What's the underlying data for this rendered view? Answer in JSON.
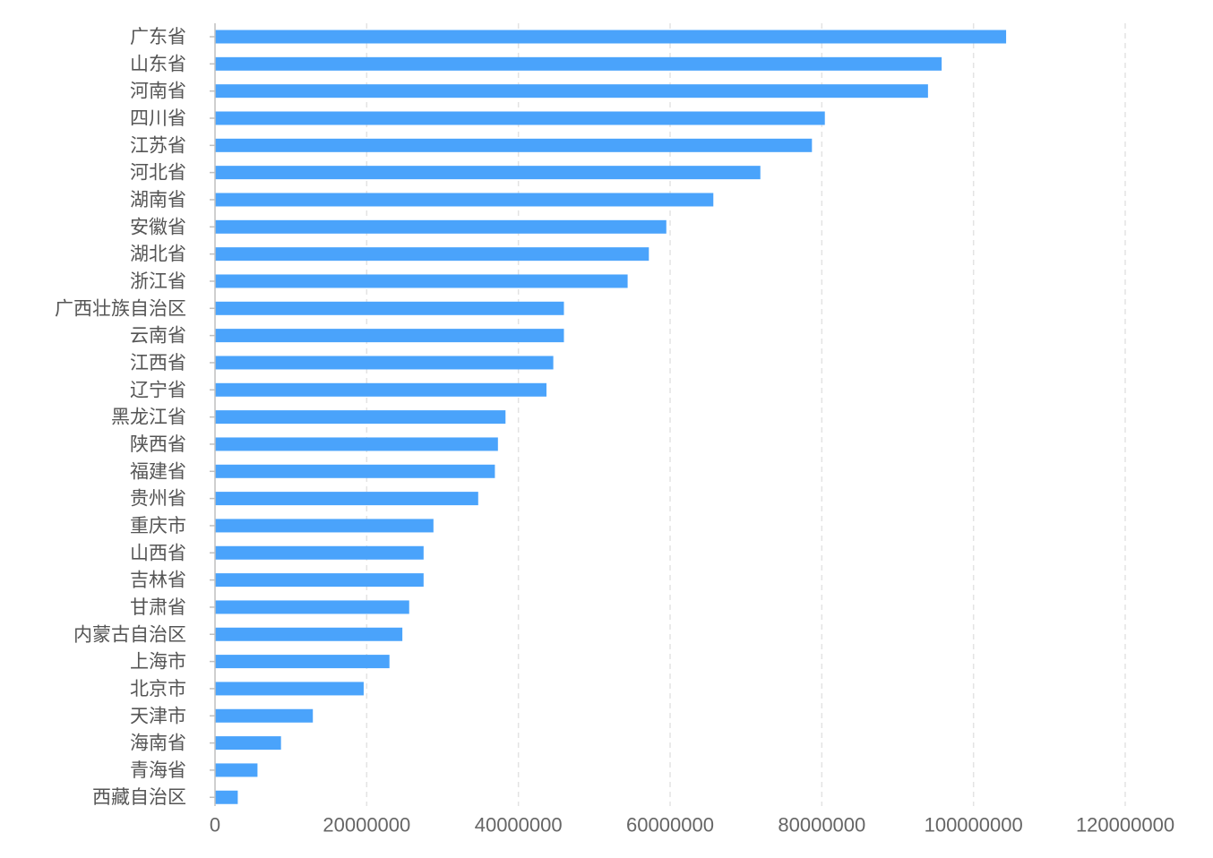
{
  "chart_data": {
    "type": "bar",
    "orientation": "horizontal",
    "title": "",
    "xlabel": "",
    "ylabel": "",
    "xlim": [
      0,
      120000000
    ],
    "x_ticks": [
      "0",
      "20000000",
      "40000000",
      "60000000",
      "80000000",
      "100000000",
      "120000000"
    ],
    "x_tick_values": [
      0,
      20000000,
      40000000,
      60000000,
      80000000,
      100000000,
      120000000
    ],
    "grid": "vertical dashed",
    "bar_color": "#4aa3fb",
    "categories": [
      "广东省",
      "山东省",
      "河南省",
      "四川省",
      "江苏省",
      "河北省",
      "湖南省",
      "安徽省",
      "湖北省",
      "浙江省",
      "广西壮族自治区",
      "云南省",
      "江西省",
      "辽宁省",
      "黑龙江省",
      "陕西省",
      "福建省",
      "贵州省",
      "重庆市",
      "山西省",
      "吉林省",
      "甘肃省",
      "内蒙古自治区",
      "上海市",
      "北京市",
      "天津市",
      "海南省",
      "青海省",
      "西藏自治区"
    ],
    "values": [
      104300000,
      95800000,
      94000000,
      80400000,
      78700000,
      71900000,
      65700000,
      59500000,
      57200000,
      54400000,
      46000000,
      46000000,
      44600000,
      43700000,
      38300000,
      37300000,
      36900000,
      34700000,
      28800000,
      27500000,
      27500000,
      25600000,
      24700000,
      23000000,
      19600000,
      12900000,
      8700000,
      5600000,
      3000000
    ]
  }
}
